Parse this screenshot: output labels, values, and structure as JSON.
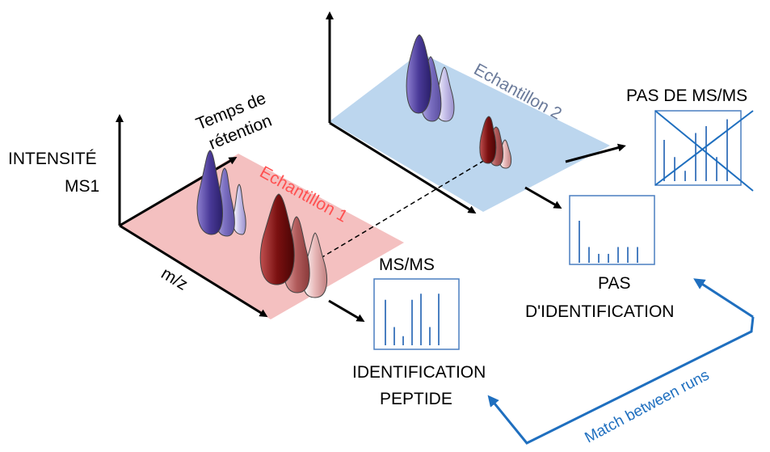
{
  "labels": {
    "intensity_line1": "INTENSITÉ",
    "intensity_line2": "MS1",
    "retention_line1": "Temps de",
    "retention_line2": "rétention",
    "mz": "m/z",
    "sample1": "Echantillon 1",
    "sample2": "Echantillon 2",
    "msms": "MS/MS",
    "no_msms": "PAS DE MS/MS",
    "no_id_line1": "PAS",
    "no_id_line2": "D'IDENTIFICATION",
    "peptide_id_line1": "IDENTIFICATION",
    "peptide_id_line2": "PEPTIDE",
    "match": "Match between runs"
  },
  "colors": {
    "sample1_plane": "#f4c0c0",
    "sample2_plane": "#bcd6ee",
    "sample1_text": "#ff5050",
    "sample2_text": "#6a7a9a",
    "spectrum": "#4a7fc1",
    "match_arrow": "#1f6fbf",
    "purple_peak": "#5040a0",
    "darkred_peak": "#7a1010"
  },
  "spectra": {
    "msms": [
      0.75,
      0.3,
      0.15,
      0.75,
      0.85,
      0.3,
      0.85
    ],
    "no_identification": [
      0.8,
      0.3,
      0.17,
      0.17,
      0.3,
      0.3,
      0.3
    ],
    "no_msms": [
      0.6,
      0.35,
      0.15,
      0.7,
      0.8,
      0.35,
      0.9
    ]
  }
}
